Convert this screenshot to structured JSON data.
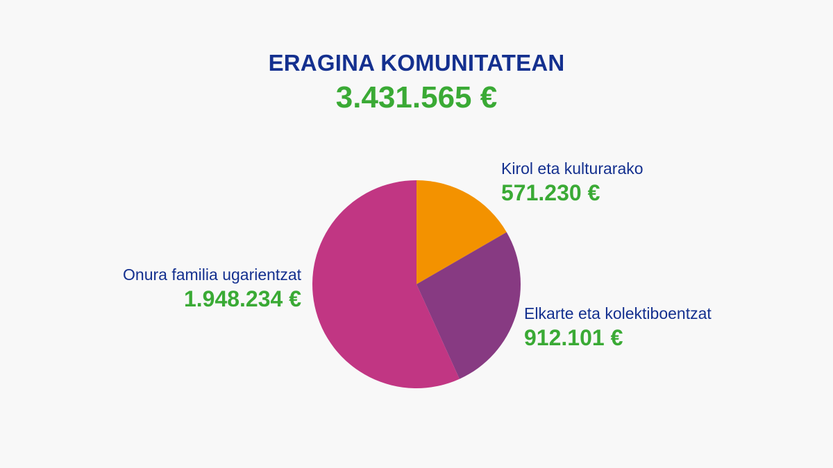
{
  "header": {
    "title": "ERAGINA KOMUNITATEAN",
    "total": "3.431.565 €"
  },
  "chart_data": {
    "type": "pie",
    "categories": [
      "Kirol eta kulturarako",
      "Elkarte eta kolektiboentzat",
      "Onura familia ugarientzat"
    ],
    "values": [
      571230,
      912101,
      1948234
    ],
    "value_labels": [
      "571.230 €",
      "912.101 €",
      "1.948.234 €"
    ],
    "colors": [
      "#f39200",
      "#873a82",
      "#c13683"
    ],
    "start_angle_deg": 0,
    "direction": "clockwise"
  }
}
